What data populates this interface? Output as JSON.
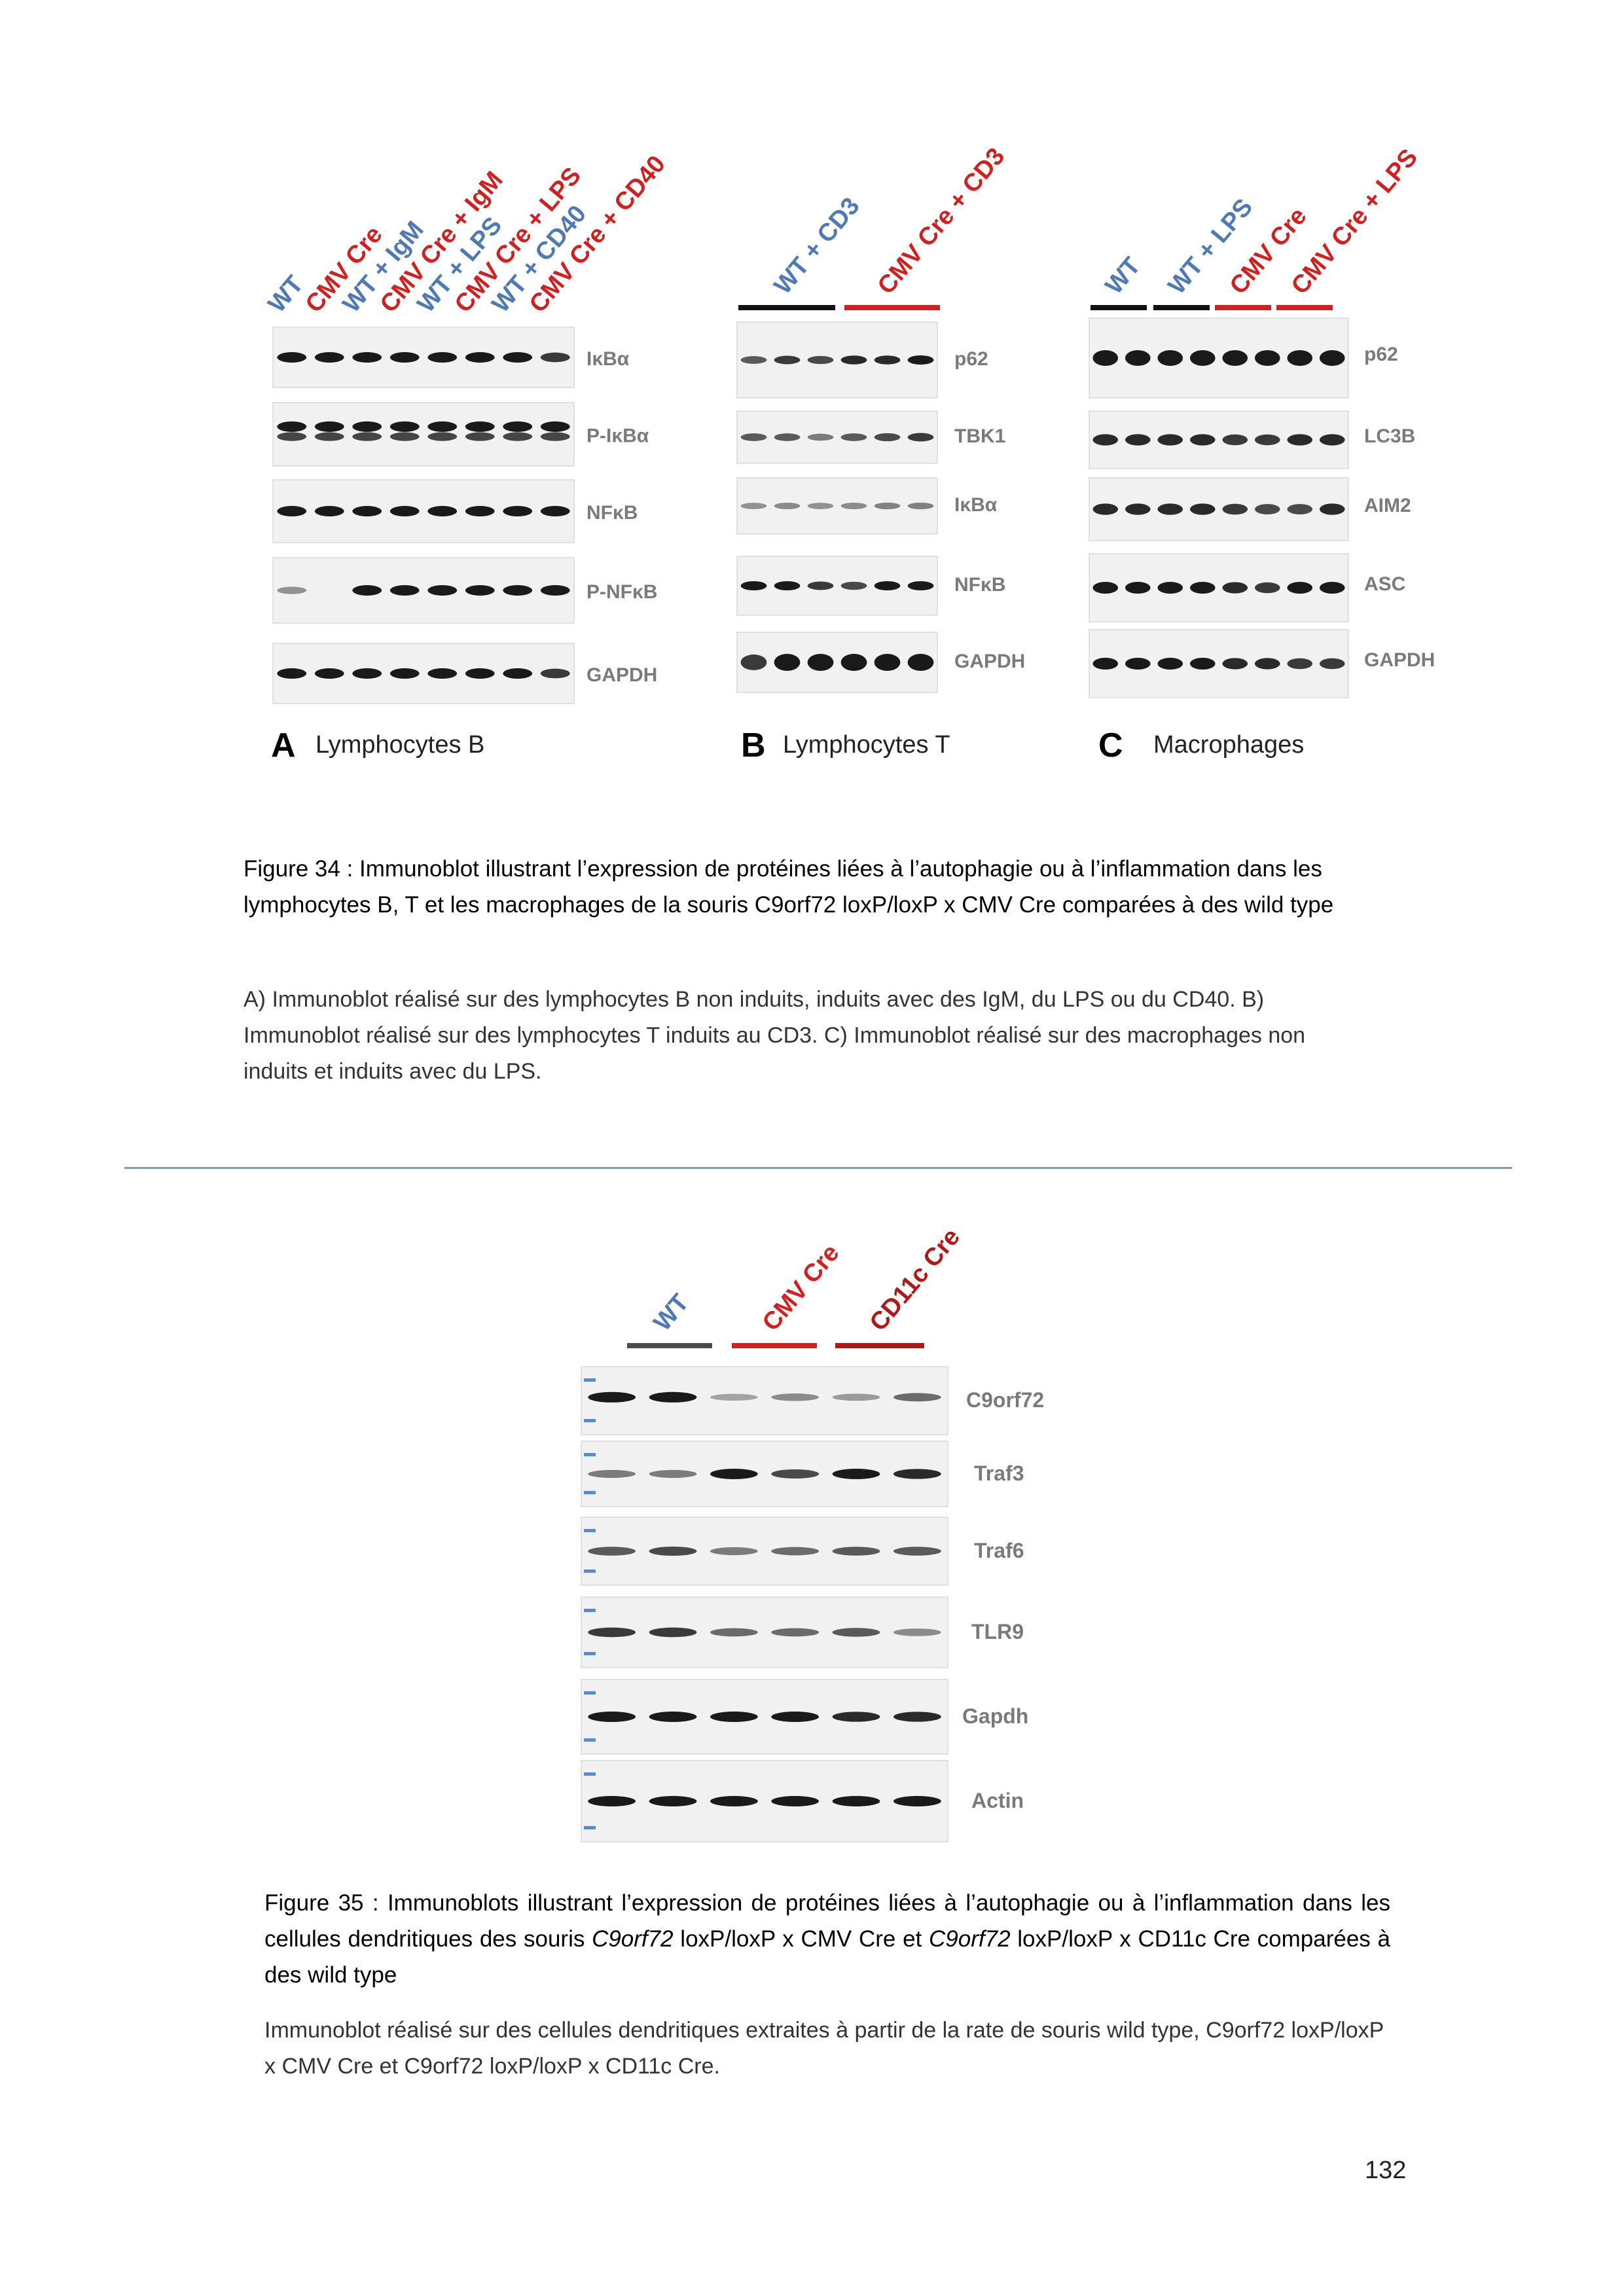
{
  "figure34": {
    "panelA": {
      "letter": "A",
      "title": "Lymphocytes B",
      "lanes": [
        {
          "label": "WT",
          "color": "#4e79b4"
        },
        {
          "label": "CMV Cre",
          "color": "#d02020"
        },
        {
          "label": "WT + IgM",
          "color": "#4e79b4"
        },
        {
          "label": "CMV Cre + IgM",
          "color": "#d02020"
        },
        {
          "label": "WT + LPS",
          "color": "#4e79b4"
        },
        {
          "label": "CMV Cre + LPS",
          "color": "#d02020"
        },
        {
          "label": "WT + CD40",
          "color": "#4e79b4"
        },
        {
          "label": "CMV Cre + CD40",
          "color": "#d02020"
        }
      ],
      "blots": [
        "IκBα",
        "P-IκBα",
        "NFκB",
        "P-NFκB",
        "GAPDH"
      ]
    },
    "panelB": {
      "letter": "B",
      "title": "Lymphocytes T",
      "groups": [
        {
          "label": "WT + CD3",
          "color": "#4e79b4",
          "bar": "#111111"
        },
        {
          "label": "CMV Cre + CD3",
          "color": "#d02020",
          "bar": "#d02020"
        }
      ],
      "blots": [
        "p62",
        "TBK1",
        "IκBα",
        "NFκB",
        "GAPDH"
      ]
    },
    "panelC": {
      "letter": "C",
      "title": "Macrophages",
      "groups": [
        {
          "label": "WT",
          "color": "#4e79b4",
          "bar": "#111111"
        },
        {
          "label": "WT + LPS",
          "color": "#4e79b4",
          "bar": "#111111"
        },
        {
          "label": "CMV Cre",
          "color": "#d02020",
          "bar": "#d02020"
        },
        {
          "label": "CMV Cre + LPS",
          "color": "#d02020",
          "bar": "#d02020"
        }
      ],
      "blots": [
        "p62",
        "LC3B",
        "AIM2",
        "ASC",
        "GAPDH"
      ]
    },
    "caption_title": "Figure 34 : Immunoblot illustrant l’expression de protéines liées à l’autophagie ou à l’inflammation dans les lymphocytes B, T et les macrophages de la souris C9orf72 loxP/loxP x CMV Cre comparées à des wild type",
    "caption_body": "A) Immunoblot réalisé sur des lymphocytes B non induits, induits avec des IgM, du LPS ou du CD40. B) Immunoblot réalisé sur des lymphocytes T induits au CD3. C) Immunoblot réalisé sur des macrophages non induits et induits avec du LPS."
  },
  "figure35": {
    "groups": [
      {
        "label": "WT",
        "color": "#4e79b4",
        "bar": "#4a4a4a"
      },
      {
        "label": "CMV Cre",
        "color": "#d02020",
        "bar": "#d02020"
      },
      {
        "label": "CD11c Cre",
        "color": "#b01818",
        "bar": "#b01818"
      }
    ],
    "blots": [
      "C9orf72",
      "Traf3",
      "Traf6",
      "TLR9",
      "Gapdh",
      "Actin"
    ],
    "caption_title": {
      "part1": "Figure 35 : Immunoblots illustrant l’expression de protéines liées à l’autophagie ou à l’inflammation dans les cellules dendritiques des souris ",
      "gene1": "C9orf72",
      "part2": " loxP/loxP x CMV Cre et ",
      "gene2": "C9orf72",
      "part3": " loxP/loxP x CD11c Cre comparées à des wild type"
    },
    "caption_body": "Immunoblot réalisé sur des cellules dendritiques extraites à partir de la rate de souris wild type, C9orf72 loxP/loxP x CMV Cre et C9orf72 loxP/loxP x CD11c Cre."
  },
  "page_number": "132"
}
